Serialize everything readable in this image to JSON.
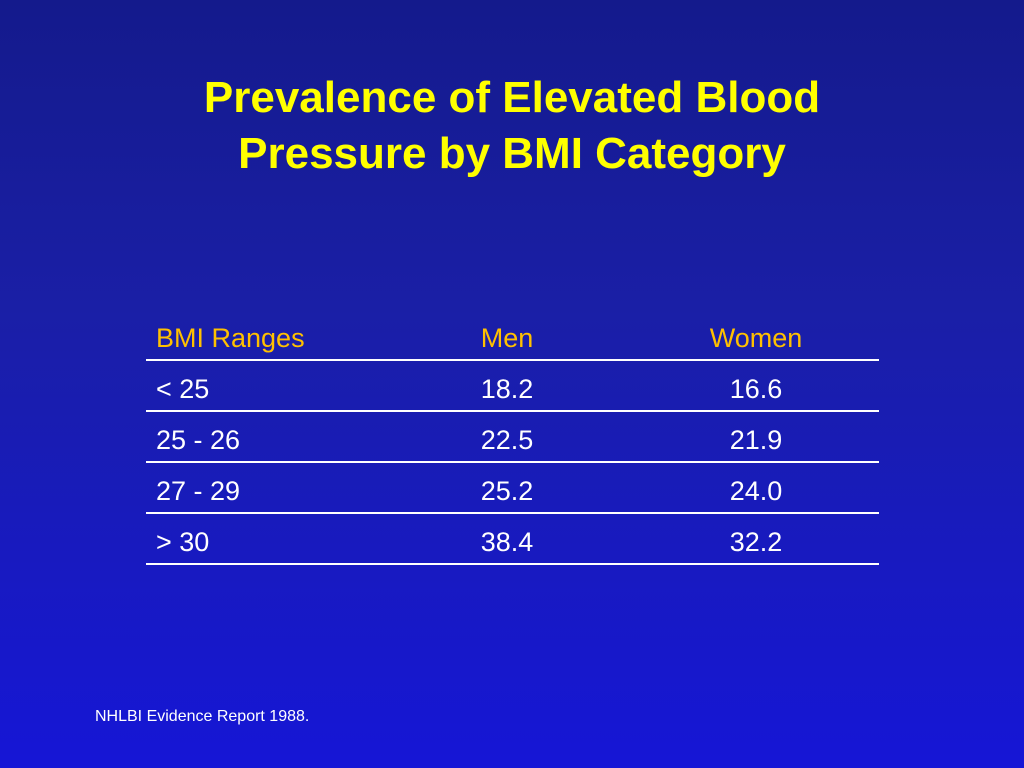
{
  "slide": {
    "title_line1": "Prevalence of Elevated Blood",
    "title_line2": "Pressure by BMI Category",
    "source": "NHLBI Evidence Report 1988."
  },
  "table": {
    "headers": [
      "BMI Ranges",
      "Men",
      "Women"
    ],
    "rows": [
      [
        "< 25",
        "18.2",
        "16.6"
      ],
      [
        "25 - 26",
        "22.5",
        "21.9"
      ],
      [
        "27 - 29",
        "25.2",
        "24.0"
      ],
      [
        "> 30",
        "38.4",
        "32.2"
      ]
    ]
  },
  "colors": {
    "background": "#1a1fa6",
    "title": "#ffff00",
    "header": "#ffc000",
    "text": "#ffffff"
  }
}
